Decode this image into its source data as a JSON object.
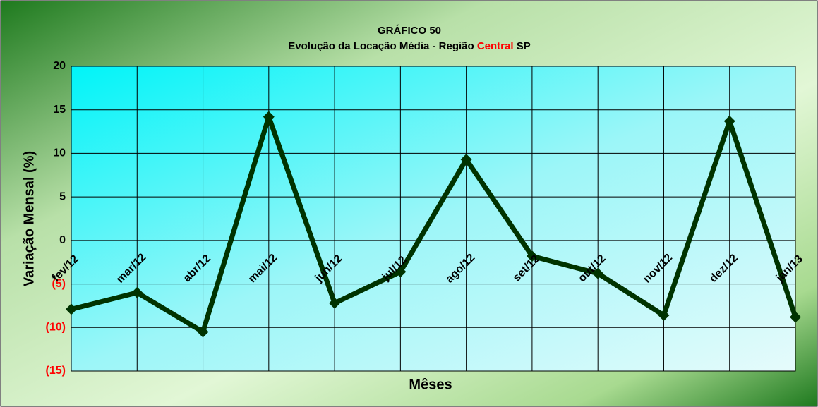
{
  "chart_data": {
    "type": "line",
    "title": "GRÁFICO 50",
    "subtitle_parts": [
      {
        "text": "Evolução da Locação Média - Região ",
        "color": "#000000"
      },
      {
        "text": "Central",
        "color": "#ff0000"
      },
      {
        "text": " SP",
        "color": "#000000"
      }
    ],
    "x_label": "Mêses",
    "y_label": "Variação Mensal (%)",
    "categories": [
      "fev/12",
      "mar/12",
      "abr/12",
      "mai/12",
      "jun/12",
      "jul/12",
      "ago/12",
      "set/12",
      "out/12",
      "nov/12",
      "dez/12",
      "jan/13"
    ],
    "series": [
      {
        "name": "Variação Mensal",
        "color": "#003300",
        "values": [
          -7.9,
          -6.0,
          -10.5,
          14.2,
          -7.2,
          -3.6,
          9.3,
          -1.8,
          -3.8,
          -8.6,
          13.7,
          -8.8
        ]
      }
    ],
    "ylim": [
      -15,
      20
    ],
    "yticks": [
      {
        "value": -15,
        "label": "(15)"
      },
      {
        "value": -10,
        "label": "(10)"
      },
      {
        "value": -5,
        "label": "(5)"
      },
      0,
      5,
      10,
      15,
      20
    ],
    "negative_tick_color": "#ff0000",
    "grid": true,
    "legend": false
  }
}
